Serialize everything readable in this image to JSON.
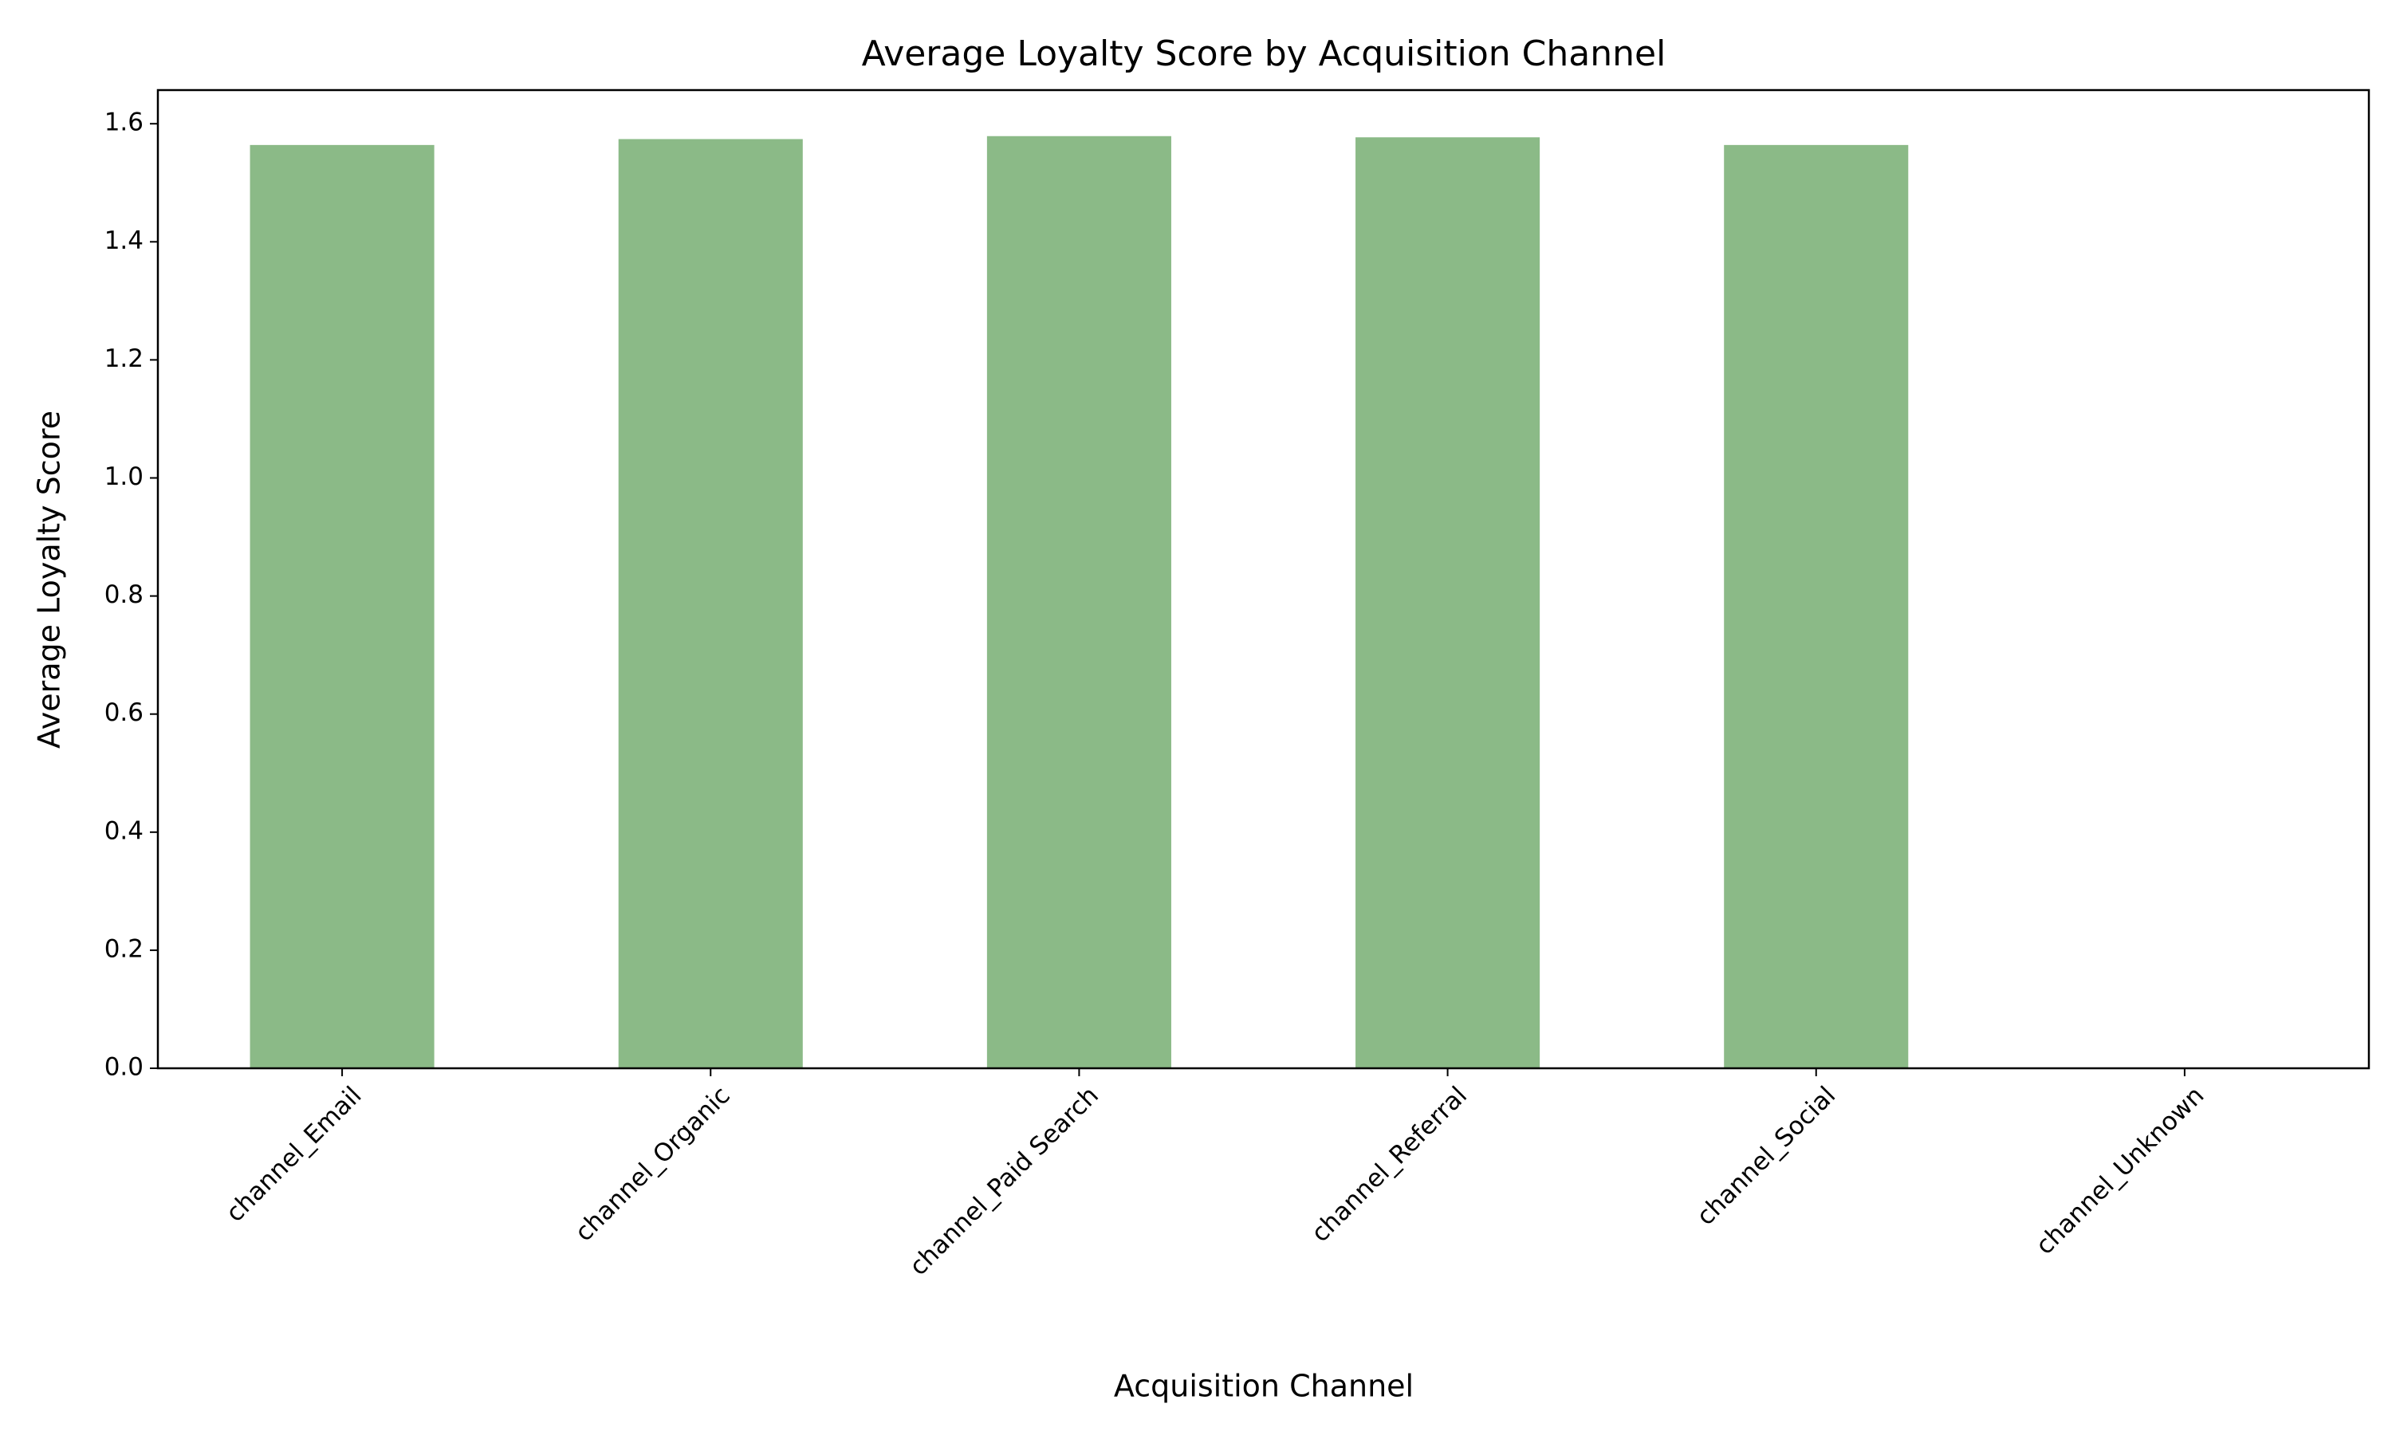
{
  "chart_data": {
    "type": "bar",
    "title": "Average Loyalty Score by Acquisition Channel",
    "x_label": "Acquisition Channel",
    "y_label": "Average Loyalty Score",
    "categories": [
      "channel_Email",
      "channel_Organic",
      "channel_Paid Search",
      "channel_Referral",
      "channel_Social",
      "channel_Unknown"
    ],
    "values": [
      1.564,
      1.574,
      1.579,
      1.577,
      1.564,
      null
    ],
    "color": "#8bba87",
    "ylim": [
      0,
      1.657
    ],
    "yticks": [
      {
        "value": 0,
        "label": "0.0"
      },
      0.2,
      0.4,
      0.6,
      0.8,
      {
        "value": 1,
        "label": "1.0"
      },
      1.2,
      1.4,
      1.6
    ]
  }
}
